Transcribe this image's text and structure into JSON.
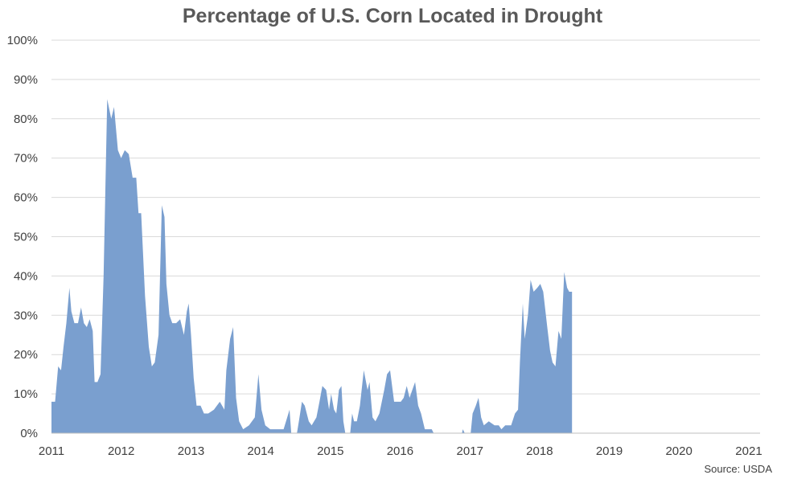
{
  "chart_data": {
    "type": "area",
    "title": "Percentage of U.S. Corn Located in Drought",
    "source": "Source: USDA",
    "xlabel": "",
    "ylabel": "",
    "x_range": [
      "2011-01-01",
      "2021-03-01"
    ],
    "ylim": [
      0,
      100
    ],
    "y_ticks": [
      0,
      10,
      20,
      30,
      40,
      50,
      60,
      70,
      80,
      90,
      100
    ],
    "y_tick_labels": [
      "0%",
      "10%",
      "20%",
      "30%",
      "40%",
      "50%",
      "60%",
      "70%",
      "80%",
      "90%",
      "100%"
    ],
    "x_ticks": [
      "2011-01-01",
      "2012-01-01",
      "2013-01-01",
      "2014-01-01",
      "2015-01-01",
      "2016-01-01",
      "2017-01-01",
      "2018-01-01",
      "2019-01-01",
      "2020-01-01",
      "2021-01-01"
    ],
    "x_tick_labels": [
      "2011",
      "2012",
      "2013",
      "2014",
      "2015",
      "2016",
      "2017",
      "2018",
      "2019",
      "2020",
      "2021"
    ],
    "grid": {
      "horizontal": true,
      "vertical": false
    },
    "fill_color": "#7A9FCF",
    "series": [
      {
        "values": [
          [
            "2011-01-01",
            8
          ],
          [
            "2011-01-20",
            8
          ],
          [
            "2011-02-05",
            17
          ],
          [
            "2011-02-20",
            16
          ],
          [
            "2011-03-05",
            22
          ],
          [
            "2011-03-20",
            28
          ],
          [
            "2011-04-05",
            37
          ],
          [
            "2011-04-15",
            31
          ],
          [
            "2011-05-01",
            28
          ],
          [
            "2011-05-20",
            28
          ],
          [
            "2011-06-05",
            32
          ],
          [
            "2011-06-20",
            28
          ],
          [
            "2011-07-05",
            27
          ],
          [
            "2011-07-20",
            29
          ],
          [
            "2011-08-05",
            26
          ],
          [
            "2011-08-15",
            13
          ],
          [
            "2011-08-30",
            13
          ],
          [
            "2011-09-15",
            15
          ],
          [
            "2011-10-01",
            40
          ],
          [
            "2011-10-20",
            85
          ],
          [
            "2011-11-10",
            80
          ],
          [
            "2011-11-25",
            83
          ],
          [
            "2011-12-15",
            72
          ],
          [
            "2012-01-01",
            70
          ],
          [
            "2012-01-20",
            72
          ],
          [
            "2012-02-10",
            71
          ],
          [
            "2012-03-01",
            65
          ],
          [
            "2012-03-20",
            65
          ],
          [
            "2012-04-01",
            56
          ],
          [
            "2012-04-15",
            56
          ],
          [
            "2012-05-05",
            35
          ],
          [
            "2012-05-25",
            22
          ],
          [
            "2012-06-10",
            17
          ],
          [
            "2012-06-25",
            18
          ],
          [
            "2012-07-15",
            25
          ],
          [
            "2012-08-01",
            58
          ],
          [
            "2012-08-15",
            55
          ],
          [
            "2012-08-25",
            38
          ],
          [
            "2012-09-10",
            30
          ],
          [
            "2012-09-25",
            28
          ],
          [
            "2012-10-15",
            28
          ],
          [
            "2012-11-05",
            29
          ],
          [
            "2012-11-25",
            25
          ],
          [
            "2012-12-10",
            31
          ],
          [
            "2012-12-20",
            33
          ],
          [
            "2013-01-01",
            25
          ],
          [
            "2013-01-15",
            14
          ],
          [
            "2013-01-30",
            7
          ],
          [
            "2013-02-20",
            7
          ],
          [
            "2013-03-10",
            5
          ],
          [
            "2013-04-01",
            5
          ],
          [
            "2013-05-01",
            6
          ],
          [
            "2013-06-01",
            8
          ],
          [
            "2013-06-25",
            6
          ],
          [
            "2013-07-05",
            16
          ],
          [
            "2013-07-25",
            24
          ],
          [
            "2013-08-10",
            27
          ],
          [
            "2013-08-25",
            9
          ],
          [
            "2013-09-10",
            3
          ],
          [
            "2013-10-01",
            1
          ],
          [
            "2013-11-01",
            2
          ],
          [
            "2013-12-01",
            4
          ],
          [
            "2013-12-20",
            15
          ],
          [
            "2014-01-05",
            6
          ],
          [
            "2014-01-25",
            2
          ],
          [
            "2014-02-20",
            1
          ],
          [
            "2014-05-01",
            1
          ],
          [
            "2014-05-20",
            4
          ],
          [
            "2014-06-01",
            6
          ],
          [
            "2014-06-10",
            0
          ],
          [
            "2014-07-10",
            0
          ],
          [
            "2014-07-20",
            3
          ],
          [
            "2014-08-05",
            8
          ],
          [
            "2014-08-20",
            7
          ],
          [
            "2014-09-10",
            3
          ],
          [
            "2014-09-25",
            2
          ],
          [
            "2014-10-20",
            4
          ],
          [
            "2014-11-05",
            8
          ],
          [
            "2014-11-20",
            12
          ],
          [
            "2014-12-10",
            11
          ],
          [
            "2014-12-25",
            6
          ],
          [
            "2015-01-05",
            10
          ],
          [
            "2015-01-20",
            6
          ],
          [
            "2015-02-01",
            5
          ],
          [
            "2015-02-15",
            11
          ],
          [
            "2015-02-28",
            12
          ],
          [
            "2015-03-10",
            3
          ],
          [
            "2015-03-20",
            0
          ],
          [
            "2015-04-15",
            0
          ],
          [
            "2015-04-25",
            5
          ],
          [
            "2015-05-05",
            3
          ],
          [
            "2015-05-20",
            3
          ],
          [
            "2015-06-05",
            7
          ],
          [
            "2015-06-25",
            16
          ],
          [
            "2015-07-15",
            11
          ],
          [
            "2015-07-25",
            13
          ],
          [
            "2015-08-10",
            4
          ],
          [
            "2015-08-25",
            3
          ],
          [
            "2015-09-15",
            5
          ],
          [
            "2015-10-10",
            11
          ],
          [
            "2015-10-25",
            15
          ],
          [
            "2015-11-10",
            16
          ],
          [
            "2015-12-01",
            8
          ],
          [
            "2015-12-20",
            8
          ],
          [
            "2016-01-05",
            8
          ],
          [
            "2016-01-20",
            9
          ],
          [
            "2016-02-05",
            12
          ],
          [
            "2016-02-20",
            9
          ],
          [
            "2016-03-05",
            11
          ],
          [
            "2016-03-20",
            13
          ],
          [
            "2016-04-05",
            7
          ],
          [
            "2016-04-20",
            5
          ],
          [
            "2016-05-10",
            1
          ],
          [
            "2016-06-15",
            1
          ],
          [
            "2016-06-25",
            0
          ],
          [
            "2016-11-20",
            0
          ],
          [
            "2016-11-25",
            1
          ],
          [
            "2016-12-05",
            0
          ],
          [
            "2017-01-05",
            0
          ],
          [
            "2017-01-15",
            5
          ],
          [
            "2017-02-01",
            7
          ],
          [
            "2017-02-15",
            9
          ],
          [
            "2017-03-01",
            4
          ],
          [
            "2017-03-15",
            2
          ],
          [
            "2017-04-10",
            3
          ],
          [
            "2017-05-10",
            2
          ],
          [
            "2017-06-01",
            2
          ],
          [
            "2017-06-15",
            1
          ],
          [
            "2017-07-05",
            2
          ],
          [
            "2017-08-05",
            2
          ],
          [
            "2017-08-25",
            5
          ],
          [
            "2017-09-10",
            6
          ],
          [
            "2017-09-20",
            18
          ],
          [
            "2017-10-05",
            33
          ],
          [
            "2017-10-15",
            24
          ],
          [
            "2017-11-01",
            30
          ],
          [
            "2017-11-15",
            39
          ],
          [
            "2017-12-01",
            36
          ],
          [
            "2017-12-20",
            37
          ],
          [
            "2018-01-05",
            38
          ],
          [
            "2018-01-20",
            36
          ],
          [
            "2018-02-10",
            27
          ],
          [
            "2018-02-25",
            21
          ],
          [
            "2018-03-10",
            18
          ],
          [
            "2018-03-25",
            17
          ],
          [
            "2018-04-10",
            26
          ],
          [
            "2018-04-25",
            24
          ],
          [
            "2018-05-10",
            41
          ],
          [
            "2018-05-25",
            37
          ],
          [
            "2018-06-05",
            36
          ],
          [
            "2018-06-20",
            36
          ]
        ]
      }
    ]
  }
}
